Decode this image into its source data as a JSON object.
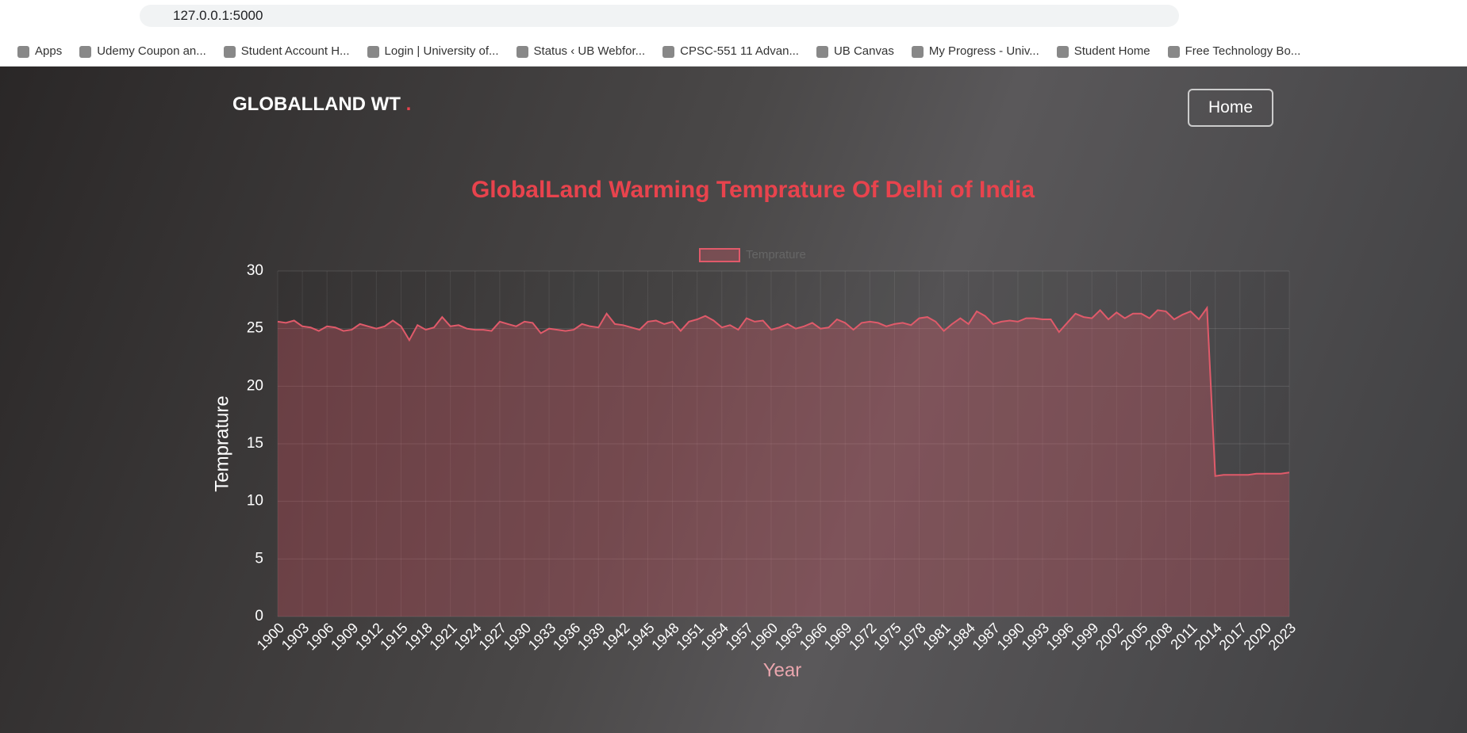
{
  "browser": {
    "url": "127.0.0.1:5000",
    "bookmarks": [
      "Apps",
      "Udemy Coupon an...",
      "Student Account H...",
      "Login | University of...",
      "Status ‹ UB Webfor...",
      "CPSC-551 11 Advan...",
      "UB Canvas",
      "My Progress - Univ...",
      "Student Home",
      "Free Technology Bo..."
    ]
  },
  "navbar": {
    "brand": "GLOBALLAND WT",
    "brand_dot": ".",
    "home": "Home"
  },
  "chart_data": {
    "type": "line",
    "title": "GlobalLand Warming Temprature Of Delhi of India",
    "x_label": "Year",
    "y_label": "Temprature",
    "categories": [
      "1900",
      null,
      null,
      "1903",
      null,
      null,
      "1906",
      null,
      null,
      "1909",
      null,
      null,
      "1912",
      null,
      null,
      "1915",
      null,
      null,
      "1918",
      null,
      null,
      "1921",
      null,
      null,
      "1924",
      null,
      null,
      "1927",
      null,
      null,
      "1930",
      null,
      null,
      "1933",
      null,
      null,
      "1936",
      null,
      null,
      "1939",
      null,
      null,
      "1942",
      null,
      null,
      "1945",
      null,
      null,
      "1948",
      null,
      null,
      "1951",
      null,
      null,
      "1954",
      null,
      null,
      "1957",
      null,
      null,
      "1960",
      null,
      null,
      "1963",
      null,
      null,
      "1966",
      null,
      null,
      "1969",
      null,
      null,
      "1972",
      null,
      null,
      "1975",
      null,
      null,
      "1978",
      null,
      null,
      "1981",
      null,
      null,
      "1984",
      null,
      null,
      "1987",
      null,
      null,
      "1990",
      null,
      null,
      "1993",
      null,
      null,
      "1996",
      null,
      null,
      "1999",
      null,
      null,
      "2002",
      null,
      null,
      "2005",
      null,
      null,
      "2008",
      null,
      null,
      "2011",
      null,
      null,
      "2014",
      null,
      null,
      "2017",
      null,
      null,
      "2020",
      null,
      null,
      "2023"
    ],
    "series": [
      {
        "name": "Temprature",
        "color": "#e05a6a",
        "values": [
          25.6,
          25.5,
          25.7,
          25.2,
          25.1,
          24.8,
          25.2,
          25.1,
          24.8,
          24.9,
          25.4,
          25.2,
          25.0,
          25.2,
          25.7,
          25.2,
          24.0,
          25.3,
          24.9,
          25.1,
          26.0,
          25.2,
          25.3,
          25.0,
          24.9,
          24.9,
          24.8,
          25.6,
          25.4,
          25.2,
          25.6,
          25.5,
          24.6,
          25.0,
          24.9,
          24.8,
          24.9,
          25.4,
          25.2,
          25.1,
          26.3,
          25.4,
          25.3,
          25.1,
          24.9,
          25.6,
          25.7,
          25.4,
          25.6,
          24.8,
          25.6,
          25.8,
          26.1,
          25.7,
          25.1,
          25.3,
          24.9,
          25.9,
          25.6,
          25.7,
          24.9,
          25.1,
          25.4,
          25.0,
          25.2,
          25.5,
          25.0,
          25.1,
          25.8,
          25.5,
          24.9,
          25.5,
          25.6,
          25.5,
          25.2,
          25.4,
          25.5,
          25.3,
          25.9,
          26.0,
          25.6,
          24.8,
          25.4,
          25.9,
          25.4,
          26.5,
          26.1,
          25.4,
          25.6,
          25.7,
          25.6,
          25.9,
          25.9,
          25.8,
          25.8,
          24.7,
          25.5,
          26.3,
          26.0,
          25.9,
          26.6,
          25.8,
          26.4,
          25.9,
          26.3,
          26.3,
          25.9,
          26.6,
          26.5,
          25.8,
          26.2,
          26.5,
          25.8,
          26.8,
          12.2,
          12.3,
          12.3,
          12.3,
          12.3,
          12.4,
          12.4,
          12.4,
          12.4,
          12.5
        ]
      }
    ],
    "ylim": [
      0,
      30
    ],
    "yticks": [
      0,
      5,
      10,
      15,
      20,
      25,
      30
    ],
    "grid": true,
    "legend": "top"
  }
}
